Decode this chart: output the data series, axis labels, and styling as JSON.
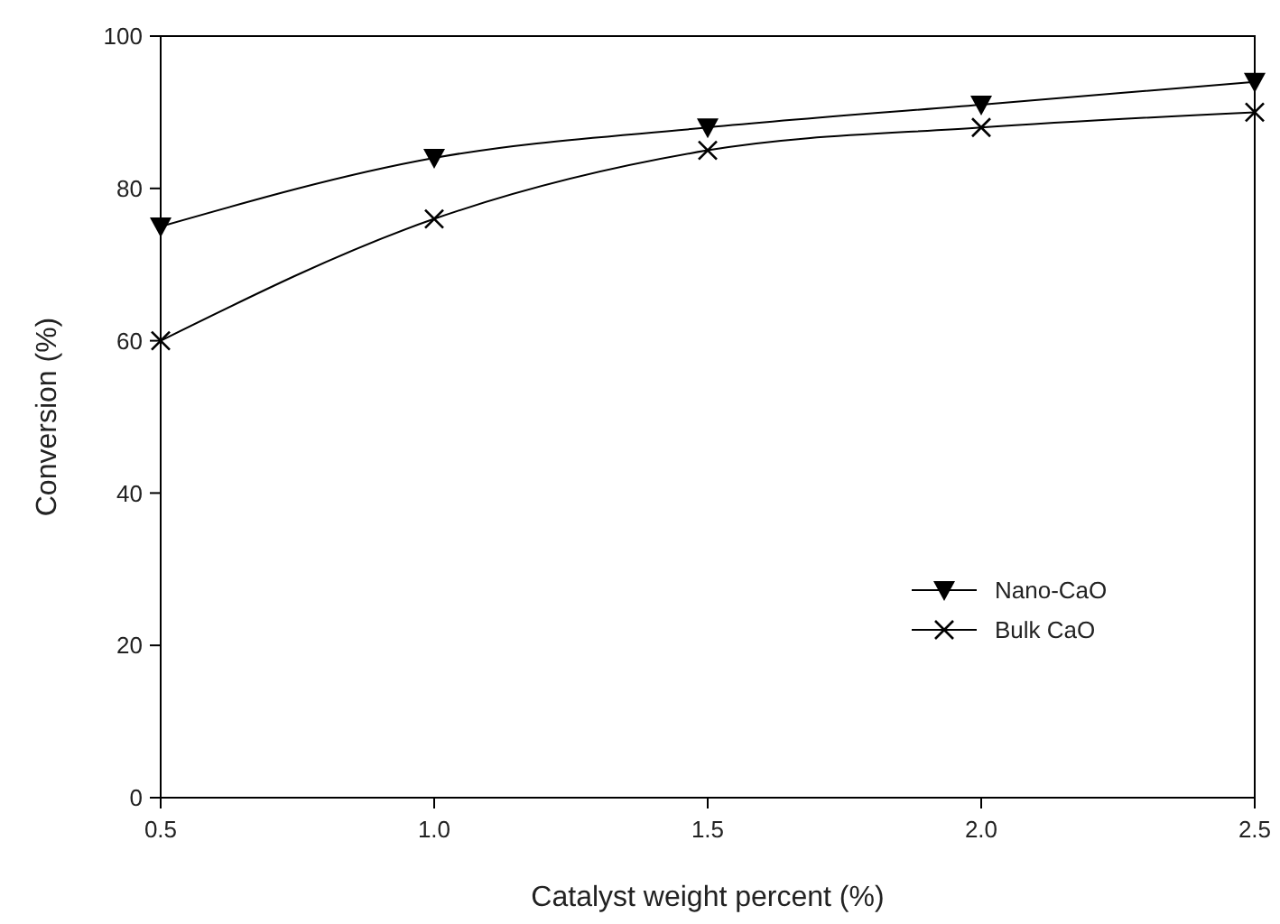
{
  "chart_data": {
    "type": "line",
    "xlabel": "Catalyst weight percent (%)",
    "ylabel": "Conversion (%)",
    "x": [
      0.5,
      1.0,
      1.5,
      2.0,
      2.5
    ],
    "series": [
      {
        "name": "Nano-CaO",
        "color": "#000000",
        "marker": "triangle",
        "values": [
          75,
          84,
          88,
          91,
          94
        ]
      },
      {
        "name": "Bulk CaO",
        "color": "#000000",
        "marker": "cross",
        "values": [
          60,
          76,
          85,
          88,
          90
        ]
      }
    ],
    "xlim": [
      0.5,
      2.5
    ],
    "xticks": [
      {
        "value": 0.5,
        "label": "0.5"
      },
      {
        "value": 1.0,
        "label": "1.0"
      },
      {
        "value": 1.5,
        "label": "1.5"
      },
      {
        "value": 2.0,
        "label": "2.0"
      },
      {
        "value": 2.5,
        "label": "2.5"
      }
    ],
    "ylim": [
      0,
      100
    ],
    "yticks": [
      0,
      20,
      40,
      60,
      80,
      100
    ],
    "grid": false,
    "legend": "bottom right",
    "line_style": "solid"
  }
}
